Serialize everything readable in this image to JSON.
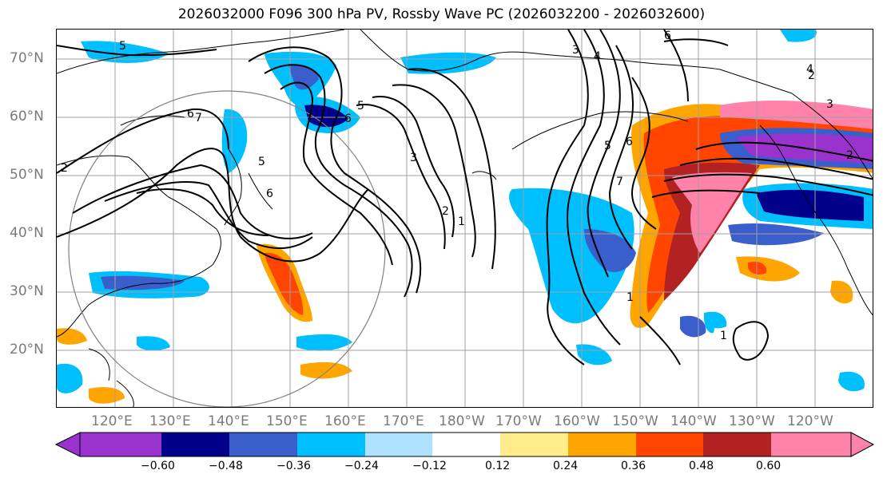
{
  "title": "2026032000 F096 300 hPa PV, Rossby Wave PC (2026032200 - 2026032600)",
  "lat_labels": [
    "70°N",
    "60°N",
    "50°N",
    "40°N",
    "30°N",
    "20°N"
  ],
  "lon_labels": [
    "120°E",
    "130°E",
    "140°E",
    "150°E",
    "160°E",
    "170°E",
    "180°W",
    "170°W",
    "160°W",
    "150°W",
    "140°W",
    "130°W",
    "120°W"
  ],
  "colorbar": {
    "colors": [
      "#9a32cd",
      "#00008b",
      "#3a5fcd",
      "#00bfff",
      "#b0e2ff",
      "#ffffff",
      "#ffec8b",
      "#ffa500",
      "#ff4500",
      "#b22222",
      "#ff82ab"
    ],
    "tick_labels": [
      "−0.60",
      "−0.48",
      "−0.36",
      "−0.24",
      "−0.12",
      "0.12",
      "0.24",
      "0.36",
      "0.48",
      "0.60"
    ]
  },
  "contour_labels": [
    "5",
    "6",
    "7",
    "5",
    "6",
    "5",
    "6",
    "3",
    "2",
    "1",
    "3",
    "4",
    "5",
    "6",
    "7",
    "1",
    "1",
    "2",
    "3",
    "4",
    "6",
    "2",
    "2"
  ],
  "colors": {
    "coast": "#000000",
    "grid": "#a0a0a0",
    "contour": "#000000",
    "circle": "#808080"
  }
}
